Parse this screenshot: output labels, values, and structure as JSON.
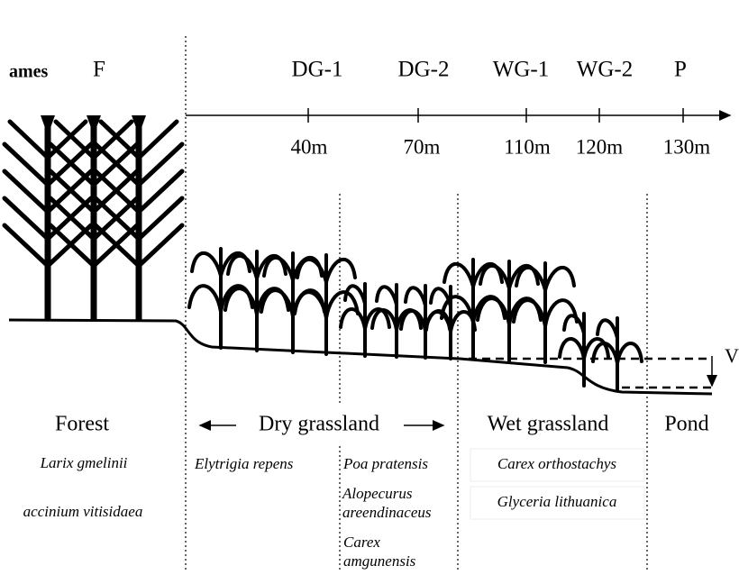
{
  "header": {
    "row_label": "ames",
    "forest_site": "F"
  },
  "sites": [
    {
      "label": "DG-1",
      "distance": "40m"
    },
    {
      "label": "DG-2",
      "distance": "70m"
    },
    {
      "label": "WG-1",
      "distance": "110m"
    },
    {
      "label": "WG-2",
      "distance": "120m"
    },
    {
      "label": "P",
      "distance": "130m"
    }
  ],
  "zones": {
    "forest": {
      "label": "Forest",
      "species": [
        [
          "Larix gmelinii"
        ],
        [
          "accinium vitisidaea"
        ]
      ]
    },
    "dry": {
      "label": "Dry grassland",
      "species": [
        [
          "Elytrigia repens"
        ],
        [
          "Poa pratensis"
        ],
        [
          "Alopecurus",
          "areendinaceus"
        ],
        [
          "Carex",
          "amgunensis"
        ]
      ]
    },
    "wet": {
      "label": "Wet grassland",
      "species": [
        [
          "Carex orthostachys"
        ],
        [
          "Glyceria lithuanica"
        ]
      ]
    },
    "pond": {
      "label": "Pond"
    },
    "water_level_mark": "V"
  }
}
